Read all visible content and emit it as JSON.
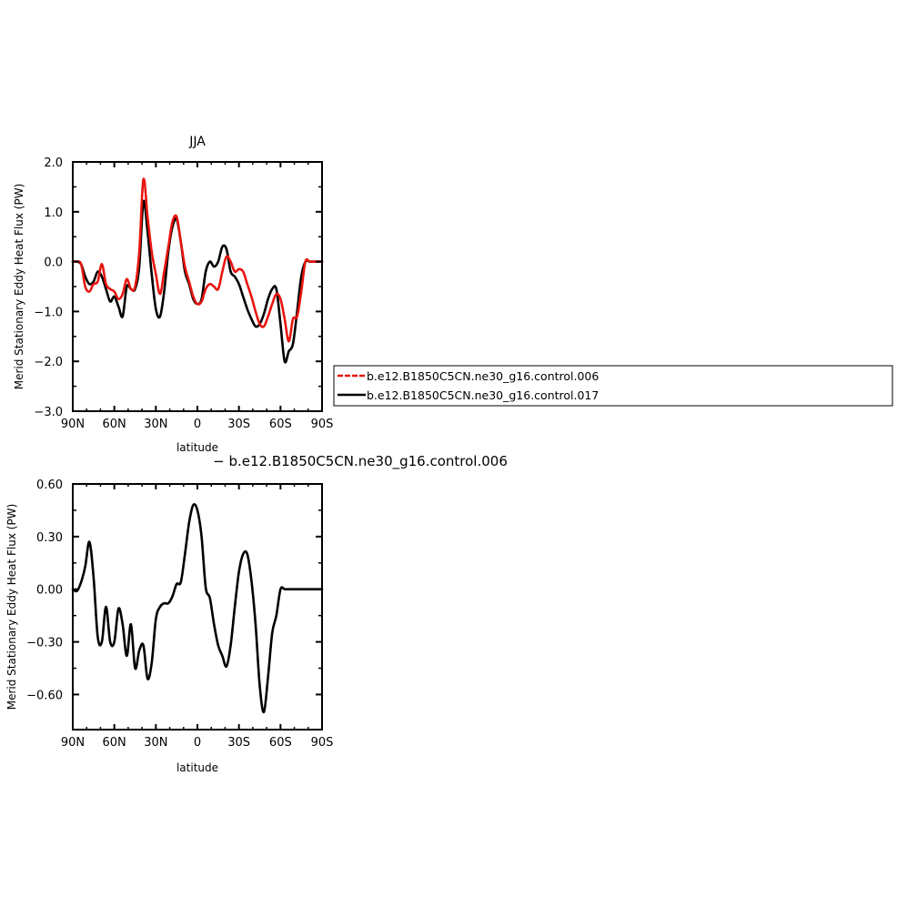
{
  "colors": {
    "red": "#e8140f",
    "black": "#000000",
    "background": "#ffffff"
  },
  "chart_data": [
    {
      "type": "line",
      "title": "JJA",
      "xlabel": "latitude",
      "ylabel": "Merid Stationary Eddy Heat Flux (PW)",
      "xlim": [
        90,
        -90
      ],
      "ylim": [
        -3.0,
        2.0
      ],
      "x_ticks": [
        {
          "value": 90,
          "label": "90N"
        },
        {
          "value": 60,
          "label": "60N"
        },
        {
          "value": 30,
          "label": "30N"
        },
        {
          "value": 0,
          "label": "0"
        },
        {
          "value": -30,
          "label": "30S"
        },
        {
          "value": -60,
          "label": "60S"
        },
        {
          "value": -90,
          "label": "90S"
        }
      ],
      "y_ticks": [
        {
          "value": 2.0,
          "label": "2.0"
        },
        {
          "value": 1.0,
          "label": "1.0"
        },
        {
          "value": 0.0,
          "label": "0.0"
        },
        {
          "value": -1.0,
          "label": "−1.0"
        },
        {
          "value": -2.0,
          "label": "−2.0"
        },
        {
          "value": -3.0,
          "label": "−3.0"
        }
      ],
      "legend": {
        "placement": "right"
      },
      "series": [
        {
          "name": "b.e12.B1850C5CN.ne30_g16.control.006",
          "color": "#e8140f",
          "dash": "dashed",
          "x": [
            90,
            87,
            84,
            81,
            78,
            75,
            72,
            69,
            66,
            63,
            60,
            57,
            54,
            51,
            48,
            45,
            42,
            39,
            36,
            33,
            30,
            27,
            24,
            21,
            18,
            15,
            12,
            9,
            6,
            3,
            0,
            -3,
            -6,
            -9,
            -12,
            -15,
            -18,
            -21,
            -24,
            -27,
            -30,
            -33,
            -36,
            -39,
            -42,
            -45,
            -48,
            -51,
            -54,
            -57,
            -60,
            -63,
            -66,
            -69,
            -72,
            -75,
            -78,
            -81,
            -84,
            -87,
            -90
          ],
          "y": [
            0.0,
            0.0,
            -0.05,
            -0.5,
            -0.6,
            -0.45,
            -0.4,
            -0.05,
            -0.45,
            -0.55,
            -0.6,
            -0.75,
            -0.65,
            -0.35,
            -0.55,
            -0.5,
            0.2,
            1.65,
            0.9,
            0.2,
            -0.25,
            -0.65,
            -0.2,
            0.3,
            0.8,
            0.9,
            0.4,
            -0.1,
            -0.4,
            -0.7,
            -0.85,
            -0.8,
            -0.55,
            -0.45,
            -0.5,
            -0.55,
            -0.2,
            0.1,
            0.0,
            -0.2,
            -0.15,
            -0.2,
            -0.45,
            -0.7,
            -1.0,
            -1.25,
            -1.3,
            -1.1,
            -0.85,
            -0.65,
            -0.75,
            -1.15,
            -1.6,
            -1.15,
            -1.1,
            -0.6,
            0.0,
            0.0,
            0.0,
            0.0,
            0.0
          ]
        },
        {
          "name": "b.e12.B1850C5CN.ne30_g16.control.017",
          "color": "#000000",
          "dash": "solid",
          "x": [
            90,
            87,
            84,
            81,
            78,
            75,
            72,
            69,
            66,
            63,
            60,
            57,
            54,
            51,
            48,
            45,
            42,
            39,
            36,
            33,
            30,
            27,
            24,
            21,
            18,
            15,
            12,
            9,
            6,
            3,
            0,
            -3,
            -6,
            -9,
            -12,
            -15,
            -18,
            -21,
            -24,
            -27,
            -30,
            -33,
            -36,
            -39,
            -42,
            -45,
            -48,
            -51,
            -54,
            -57,
            -60,
            -63,
            -66,
            -69,
            -72,
            -75,
            -78,
            -81,
            -84,
            -87,
            -90
          ],
          "y": [
            0.0,
            0.0,
            -0.05,
            -0.3,
            -0.45,
            -0.4,
            -0.2,
            -0.3,
            -0.55,
            -0.8,
            -0.7,
            -0.9,
            -1.1,
            -0.5,
            -0.55,
            -0.55,
            -0.1,
            1.2,
            0.6,
            -0.25,
            -0.95,
            -1.1,
            -0.6,
            0.2,
            0.7,
            0.85,
            0.4,
            -0.2,
            -0.45,
            -0.75,
            -0.85,
            -0.75,
            -0.2,
            0.0,
            -0.1,
            0.0,
            0.3,
            0.25,
            -0.2,
            -0.3,
            -0.45,
            -0.7,
            -0.95,
            -1.15,
            -1.3,
            -1.25,
            -1.05,
            -0.75,
            -0.55,
            -0.55,
            -1.25,
            -2.0,
            -1.8,
            -1.65,
            -1.0,
            -0.3,
            0.0,
            0.0,
            0.0,
            0.0,
            0.0
          ]
        }
      ]
    },
    {
      "type": "line",
      "title": "b.e12.B1850C5CN.ne30_g16.control.006",
      "title_prefix": "−",
      "xlabel": "latitude",
      "ylabel": "Merid Stationary Eddy Heat Flux (PW)",
      "xlim": [
        90,
        -90
      ],
      "ylim": [
        -0.8,
        0.6
      ],
      "x_ticks": [
        {
          "value": 90,
          "label": "90N"
        },
        {
          "value": 60,
          "label": "60N"
        },
        {
          "value": 30,
          "label": "30N"
        },
        {
          "value": 0,
          "label": "0"
        },
        {
          "value": -30,
          "label": "30S"
        },
        {
          "value": -60,
          "label": "60S"
        },
        {
          "value": -90,
          "label": "90S"
        }
      ],
      "y_ticks": [
        {
          "value": 0.6,
          "label": "0.60"
        },
        {
          "value": 0.3,
          "label": "0.30"
        },
        {
          "value": 0.0,
          "label": "0.00"
        },
        {
          "value": -0.3,
          "label": "−0.30"
        },
        {
          "value": -0.6,
          "label": "−0.60"
        }
      ],
      "series": [
        {
          "color": "#000000",
          "dash": "solid",
          "x": [
            90,
            87,
            84,
            81,
            78,
            75,
            72,
            69,
            66,
            63,
            60,
            57,
            54,
            51,
            48,
            45,
            42,
            39,
            36,
            33,
            30,
            27,
            24,
            21,
            18,
            15,
            12,
            9,
            6,
            3,
            0,
            -3,
            -6,
            -9,
            -12,
            -15,
            -18,
            -21,
            -24,
            -27,
            -30,
            -33,
            -36,
            -39,
            -42,
            -45,
            -48,
            -51,
            -54,
            -57,
            -60,
            -63,
            -66,
            -69,
            -72,
            -75,
            -78,
            -81,
            -84,
            -87,
            -90
          ],
          "y": [
            0.0,
            -0.01,
            0.04,
            0.13,
            0.27,
            0.07,
            -0.27,
            -0.3,
            -0.1,
            -0.3,
            -0.3,
            -0.11,
            -0.2,
            -0.38,
            -0.2,
            -0.45,
            -0.35,
            -0.32,
            -0.51,
            -0.42,
            -0.17,
            -0.1,
            -0.08,
            -0.08,
            -0.04,
            0.03,
            0.04,
            0.2,
            0.38,
            0.48,
            0.45,
            0.3,
            0.01,
            -0.05,
            -0.2,
            -0.32,
            -0.38,
            -0.44,
            -0.32,
            -0.1,
            0.1,
            0.2,
            0.2,
            0.05,
            -0.2,
            -0.55,
            -0.7,
            -0.5,
            -0.25,
            -0.15,
            0.0,
            0.0,
            0.0,
            0.0,
            0.0,
            0.0,
            0.0,
            0.0,
            0.0,
            0.0,
            0.0
          ]
        }
      ]
    }
  ]
}
